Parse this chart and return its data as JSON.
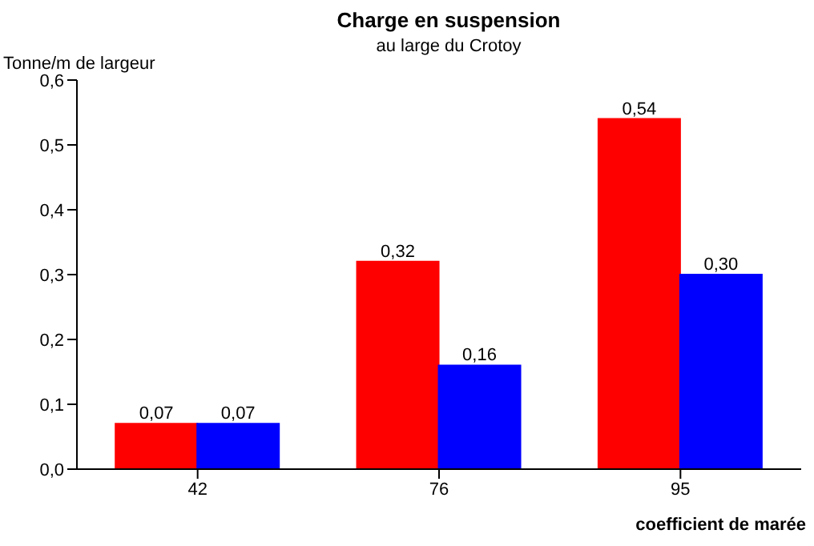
{
  "chart_data": {
    "type": "bar",
    "title": "Charge en suspension",
    "subtitle": "au large du Crotoy",
    "ylabel": "Tonne/m de largeur",
    "xlabel": "coefficient de marée",
    "categories": [
      "42",
      "76",
      "95"
    ],
    "series": [
      {
        "color": "#ff0000",
        "values": [
          0.07,
          0.32,
          0.54
        ],
        "value_labels": [
          "0,07",
          "0,32",
          "0,54"
        ]
      },
      {
        "color": "#0000ff",
        "values": [
          0.07,
          0.16,
          0.3
        ],
        "value_labels": [
          "0,07",
          "0,16",
          "0,30"
        ]
      }
    ],
    "ylim": [
      0,
      0.6
    ],
    "yticks": [
      {
        "value": 0,
        "label": "0,0"
      },
      {
        "value": 0.1,
        "label": "0,1"
      },
      {
        "value": 0.2,
        "label": "0,2"
      },
      {
        "value": 0.3,
        "label": "0,3"
      },
      {
        "value": 0.4,
        "label": "0,4"
      },
      {
        "value": 0.5,
        "label": "0,5"
      },
      {
        "value": 0.6,
        "label": "0,6"
      }
    ],
    "grid": false,
    "legend": false
  }
}
